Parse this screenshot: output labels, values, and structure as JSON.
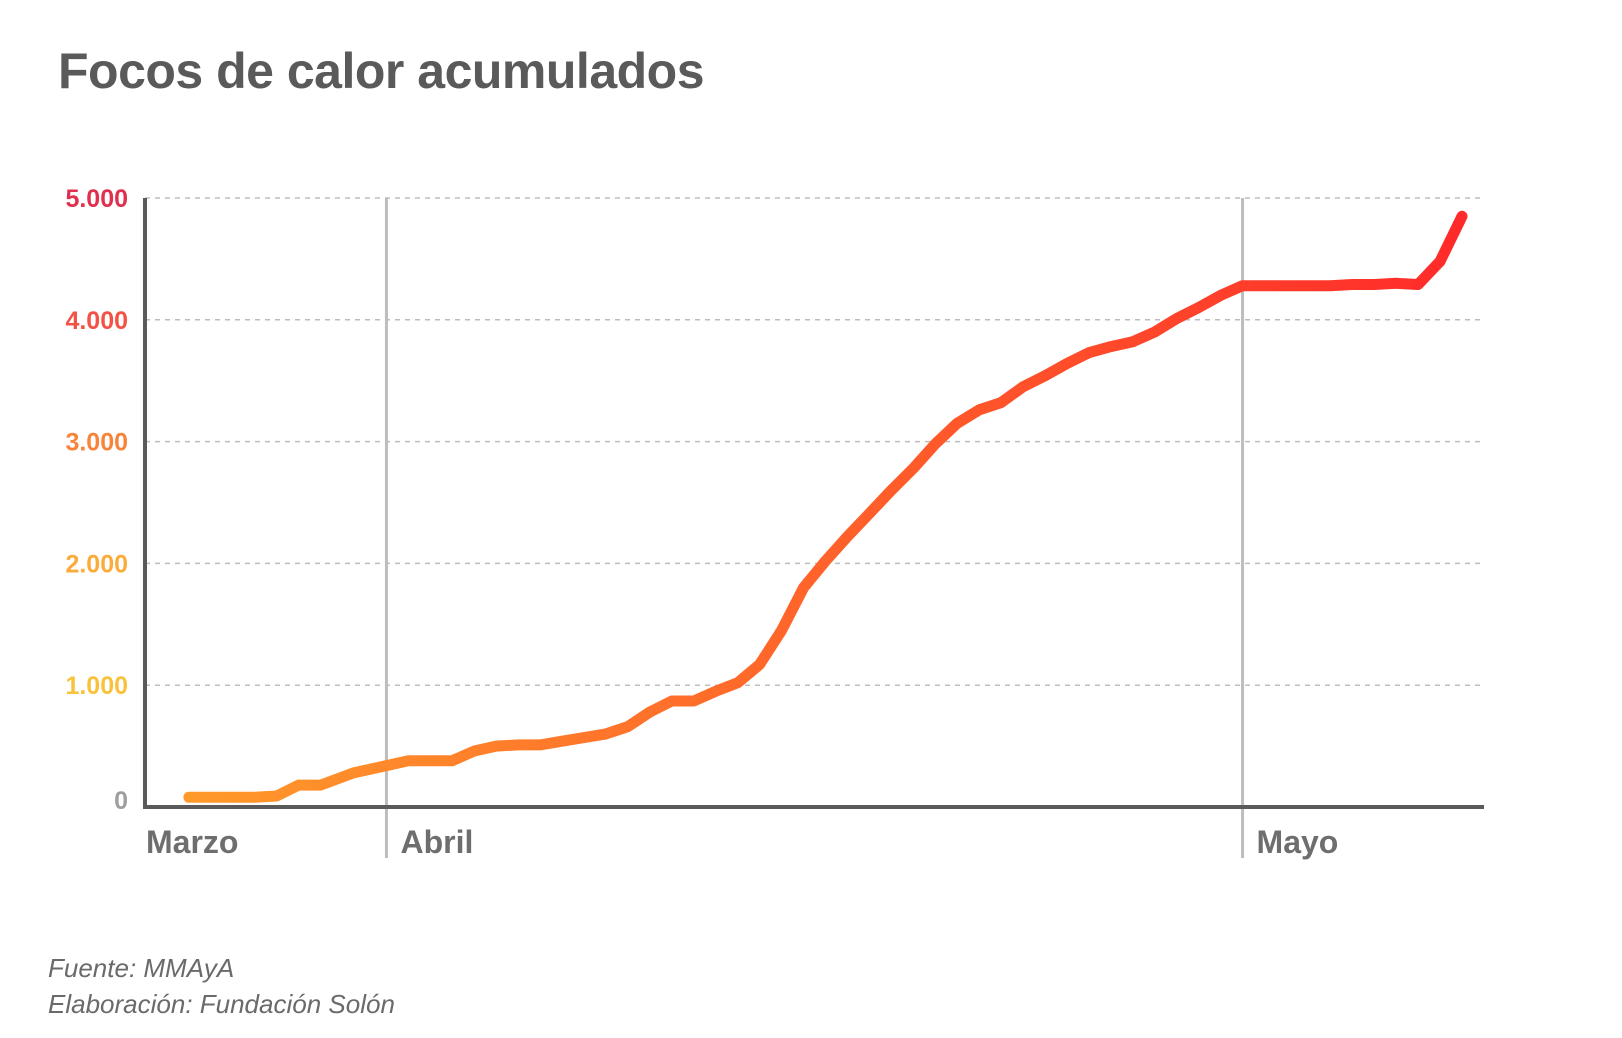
{
  "title": "Focos de calor acumulados",
  "footer": {
    "source": "Fuente: MMAyA",
    "credit": "Elaboración: Fundación Solón"
  },
  "colors": {
    "background": "#ffffff",
    "title": "#5a5a5a",
    "axis": "#5a5a5a",
    "grid": "#bdbdbd",
    "month_line": "#bdbdbd",
    "line_start": "#ff9a2a",
    "line_end": "#ff2a2a"
  },
  "chart_data": {
    "type": "line",
    "title": "Focos de calor acumulados",
    "xlabel": "",
    "ylabel": "",
    "ylim": [
      0,
      5000
    ],
    "xlim": [
      0,
      61
    ],
    "grid": true,
    "yticks": [
      {
        "value": 0,
        "label": "0",
        "color": "#9e9e9e"
      },
      {
        "value": 1000,
        "label": "1.000",
        "color": "#f9c23c"
      },
      {
        "value": 2000,
        "label": "2.000",
        "color": "#fbab3a"
      },
      {
        "value": 3000,
        "label": "3.000",
        "color": "#f8843a"
      },
      {
        "value": 4000,
        "label": "4.000",
        "color": "#f45244"
      },
      {
        "value": 5000,
        "label": "5.000",
        "color": "#e0304e"
      }
    ],
    "month_markers": [
      {
        "label": "Marzo",
        "x": 0,
        "line": false
      },
      {
        "label": "Abril",
        "x": 11,
        "line": true
      },
      {
        "label": "Mayo",
        "x": 50,
        "line": true
      }
    ],
    "series": [
      {
        "x": [
          2,
          3,
          4,
          5,
          6,
          7,
          8,
          9.5,
          11,
          12,
          13,
          14,
          15,
          16,
          17,
          18,
          19,
          20,
          21,
          22,
          23,
          24,
          25,
          26,
          27,
          28,
          29,
          30,
          31,
          32,
          33,
          34,
          35,
          36,
          37,
          38,
          39,
          40,
          41,
          42,
          43,
          44,
          45,
          46,
          47,
          48,
          49,
          50,
          51,
          52,
          53,
          54,
          55,
          56,
          57,
          58,
          59,
          60
        ],
        "values": [
          80,
          80,
          80,
          80,
          90,
          180,
          180,
          280,
          340,
          380,
          380,
          380,
          460,
          500,
          510,
          510,
          540,
          570,
          600,
          660,
          780,
          870,
          870,
          950,
          1020,
          1170,
          1450,
          1800,
          2020,
          2220,
          2410,
          2600,
          2780,
          2980,
          3150,
          3260,
          3320,
          3450,
          3540,
          3640,
          3730,
          3780,
          3820,
          3900,
          4010,
          4100,
          4200,
          4280,
          4280,
          4280,
          4280,
          4280,
          4290,
          4290,
          4300,
          4290,
          4480,
          4850
        ]
      }
    ]
  }
}
